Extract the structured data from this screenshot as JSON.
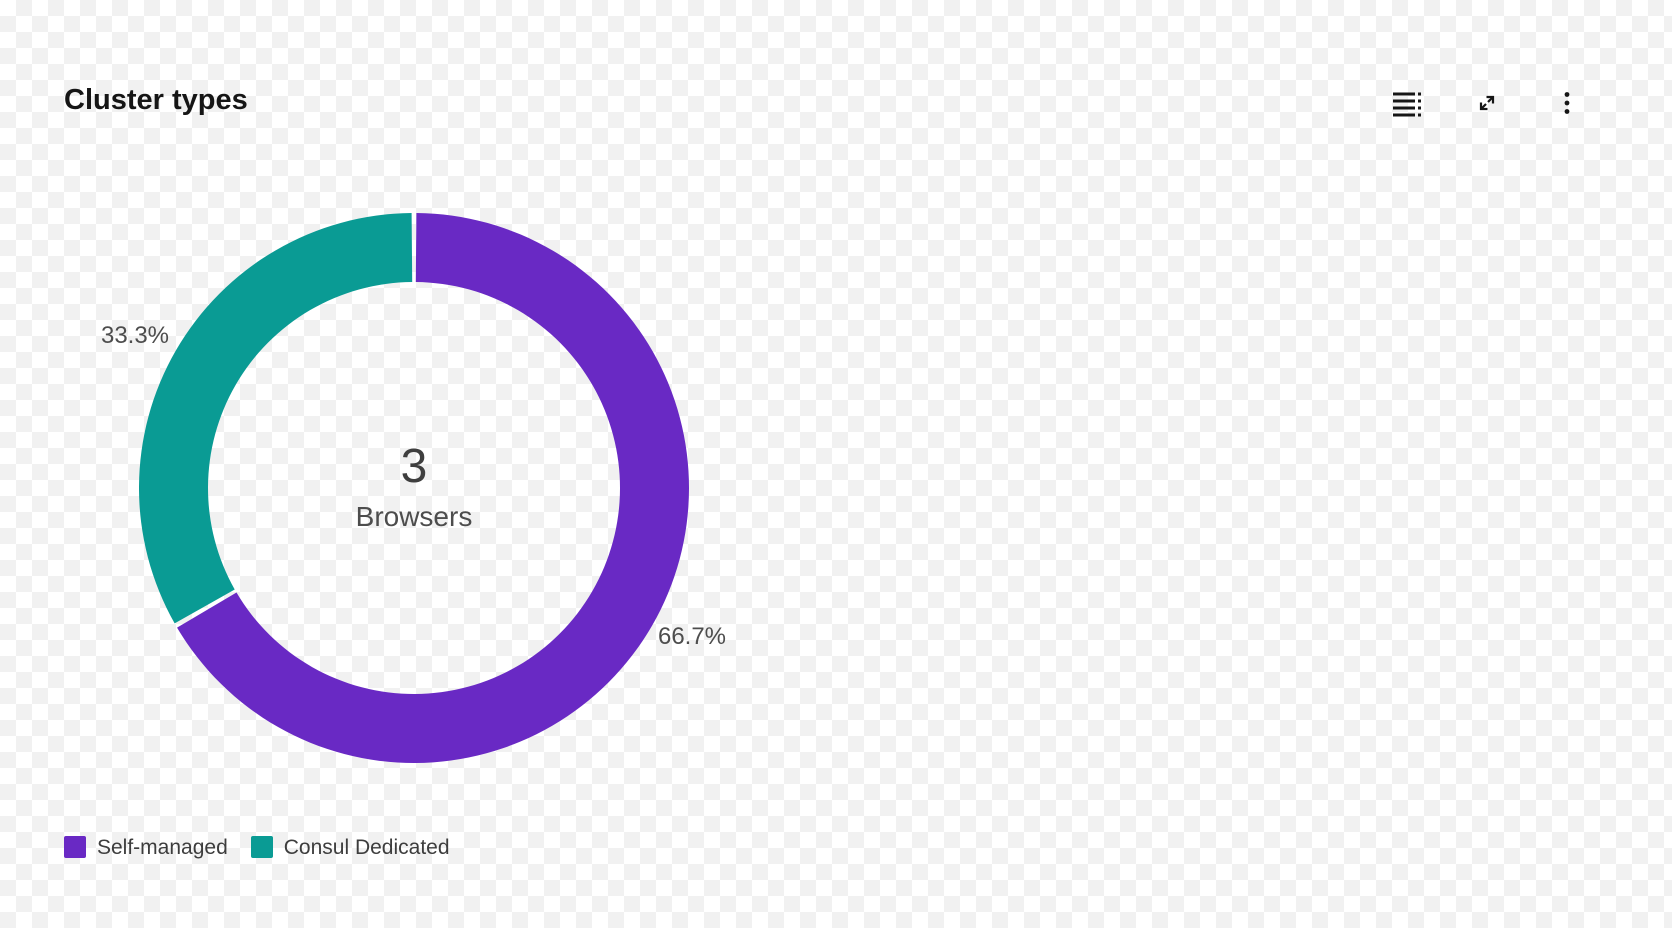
{
  "card": {
    "title": "Cluster types"
  },
  "toolbar": {
    "buttons": [
      {
        "name": "data-table",
        "icon": "data-table-icon"
      },
      {
        "name": "expand",
        "icon": "expand-icon"
      },
      {
        "name": "overflow-menu",
        "icon": "overflow-menu-icon"
      }
    ]
  },
  "chart_data": {
    "type": "pie",
    "variant": "donut",
    "title": "Cluster types",
    "total": 3,
    "center": {
      "value": "3",
      "label": "Browsers"
    },
    "segments": [
      {
        "label": "Self-managed",
        "value": 2,
        "percent": 66.7,
        "percent_label": "66.7%",
        "color": "#6929c4"
      },
      {
        "label": "Consul Dedicated",
        "value": 1,
        "percent": 33.3,
        "percent_label": "33.3%",
        "color": "#0a9b94"
      }
    ],
    "start_angle": "12-o-clock",
    "direction": "clockwise",
    "legend_position": "bottom-left"
  },
  "colors": {
    "background_checker_white": "#ffffff",
    "background_checker_gray": "#f1f1f1",
    "icon": "#161616",
    "title_text": "#161616",
    "percent_label_text": "#4d4d4d",
    "legend_text": "#3d3d3d"
  }
}
